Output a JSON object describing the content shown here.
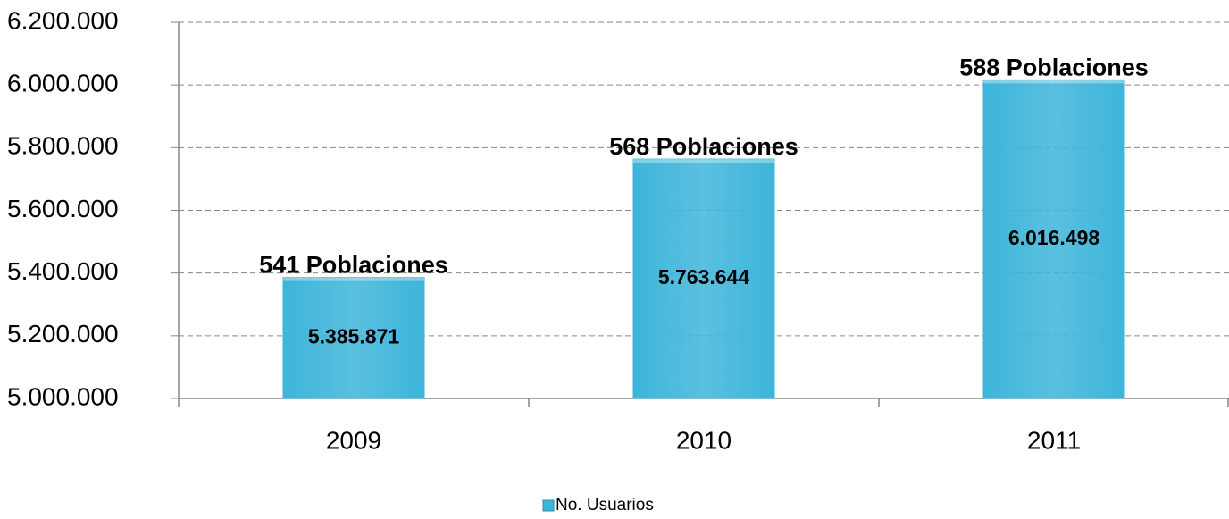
{
  "chart_data": {
    "type": "bar",
    "categories": [
      "2009",
      "2010",
      "2011"
    ],
    "series": [
      {
        "name": "No. Usuarios",
        "color": "#3db5d9",
        "values": [
          5385871,
          5763644,
          6016498
        ],
        "value_labels": [
          "5.385.871",
          "5.763.644",
          "6.016.498"
        ]
      }
    ],
    "annotations": [
      "541 Poblaciones",
      "568 Poblaciones",
      "588 Poblaciones"
    ],
    "ylim": [
      5000000,
      6200000
    ],
    "yticks": [
      {
        "value": 5000000,
        "label": "5.000.000"
      },
      {
        "value": 5200000,
        "label": "5.200.000"
      },
      {
        "value": 5400000,
        "label": "5.400.000"
      },
      {
        "value": 5600000,
        "label": "5.600.000"
      },
      {
        "value": 5800000,
        "label": "5.800.000"
      },
      {
        "value": 6000000,
        "label": "6.000.000"
      },
      {
        "value": 6200000,
        "label": "6.200.000"
      }
    ],
    "grid": true,
    "legend": "bottom"
  }
}
